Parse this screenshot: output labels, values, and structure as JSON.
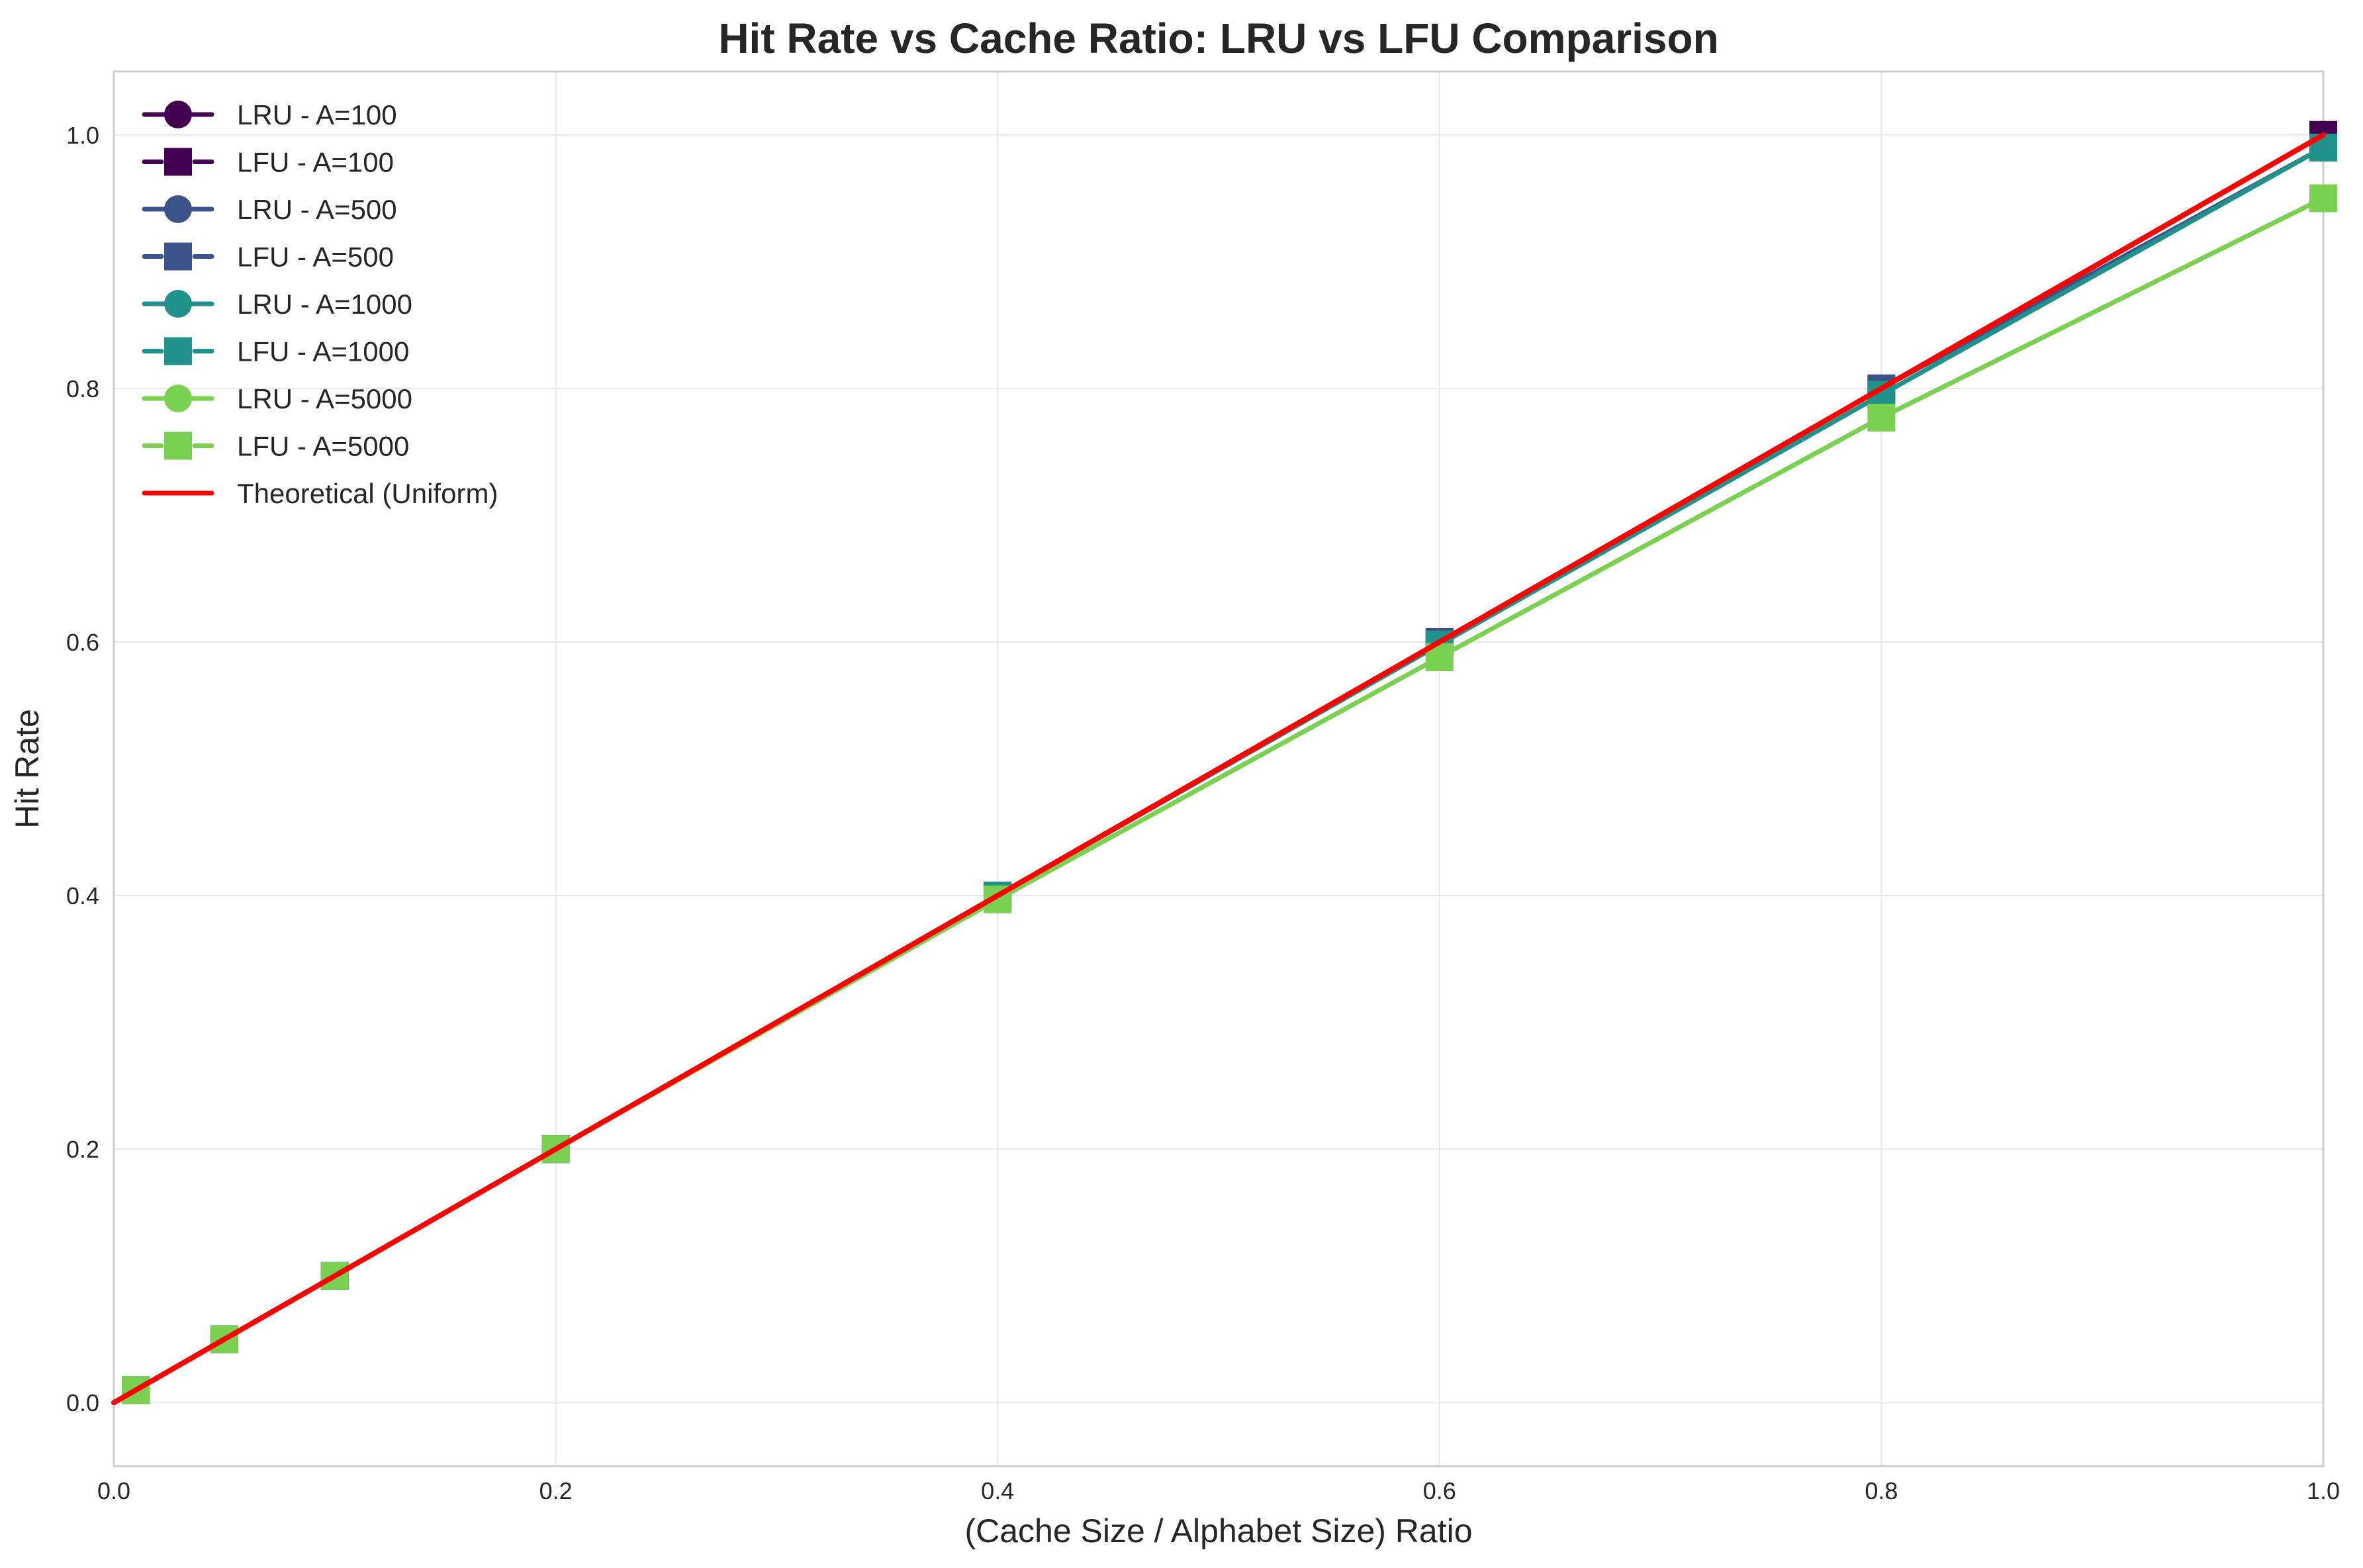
{
  "chart_data": {
    "type": "line",
    "title": "Hit Rate vs Cache Ratio: LRU vs LFU Comparison",
    "xlabel": "(Cache Size / Alphabet Size) Ratio",
    "ylabel": "Hit Rate",
    "xlim": [
      0.0,
      1.0
    ],
    "ylim": [
      -0.05,
      1.05
    ],
    "xticks": [
      "0.0",
      "0.2",
      "0.4",
      "0.6",
      "0.8",
      "1.0"
    ],
    "yticks": [
      "0.0",
      "0.2",
      "0.4",
      "0.6",
      "0.8",
      "1.0"
    ],
    "grid": true,
    "legend_position": "top-left",
    "x": [
      0.01,
      0.05,
      0.1,
      0.2,
      0.4,
      0.6,
      0.8,
      1.0
    ],
    "series": [
      {
        "name": "LRU - A=100",
        "policy": "LRU",
        "color": "#440154",
        "marker": "circle",
        "dash": "solid",
        "values": [
          0.01,
          0.05,
          0.1,
          0.2,
          0.4,
          0.6,
          0.8,
          1.0
        ]
      },
      {
        "name": "LFU - A=100",
        "policy": "LFU",
        "color": "#440154",
        "marker": "square",
        "dash": "dashed",
        "values": [
          0.01,
          0.05,
          0.1,
          0.2,
          0.4,
          0.6,
          0.8,
          1.0
        ]
      },
      {
        "name": "LRU - A=500",
        "policy": "LRU",
        "color": "#3b528b",
        "marker": "circle",
        "dash": "solid",
        "values": [
          0.01,
          0.05,
          0.1,
          0.2,
          0.4,
          0.6,
          0.8,
          0.99
        ]
      },
      {
        "name": "LFU - A=500",
        "policy": "LFU",
        "color": "#3b528b",
        "marker": "square",
        "dash": "dashed",
        "values": [
          0.01,
          0.05,
          0.1,
          0.2,
          0.4,
          0.6,
          0.8,
          0.99
        ]
      },
      {
        "name": "LRU - A=1000",
        "policy": "LRU",
        "color": "#21918c",
        "marker": "circle",
        "dash": "solid",
        "values": [
          0.01,
          0.05,
          0.1,
          0.2,
          0.4,
          0.598,
          0.795,
          0.99
        ]
      },
      {
        "name": "LFU - A=1000",
        "policy": "LFU",
        "color": "#21918c",
        "marker": "square",
        "dash": "dashed",
        "values": [
          0.01,
          0.05,
          0.1,
          0.2,
          0.4,
          0.598,
          0.795,
          0.99
        ]
      },
      {
        "name": "LRU - A=5000",
        "policy": "LRU",
        "color": "#7ad151",
        "marker": "circle",
        "dash": "solid",
        "values": [
          0.01,
          0.05,
          0.1,
          0.2,
          0.397,
          0.588,
          0.777,
          0.95
        ]
      },
      {
        "name": "LFU - A=5000",
        "policy": "LFU",
        "color": "#7ad151",
        "marker": "square",
        "dash": "dashed",
        "values": [
          0.01,
          0.05,
          0.1,
          0.2,
          0.397,
          0.588,
          0.777,
          0.95
        ]
      }
    ],
    "reference_line": {
      "name": "Theoretical (Uniform)",
      "color": "#ff0000",
      "x": [
        0.0,
        1.0
      ],
      "values": [
        0.0,
        1.0
      ]
    }
  }
}
